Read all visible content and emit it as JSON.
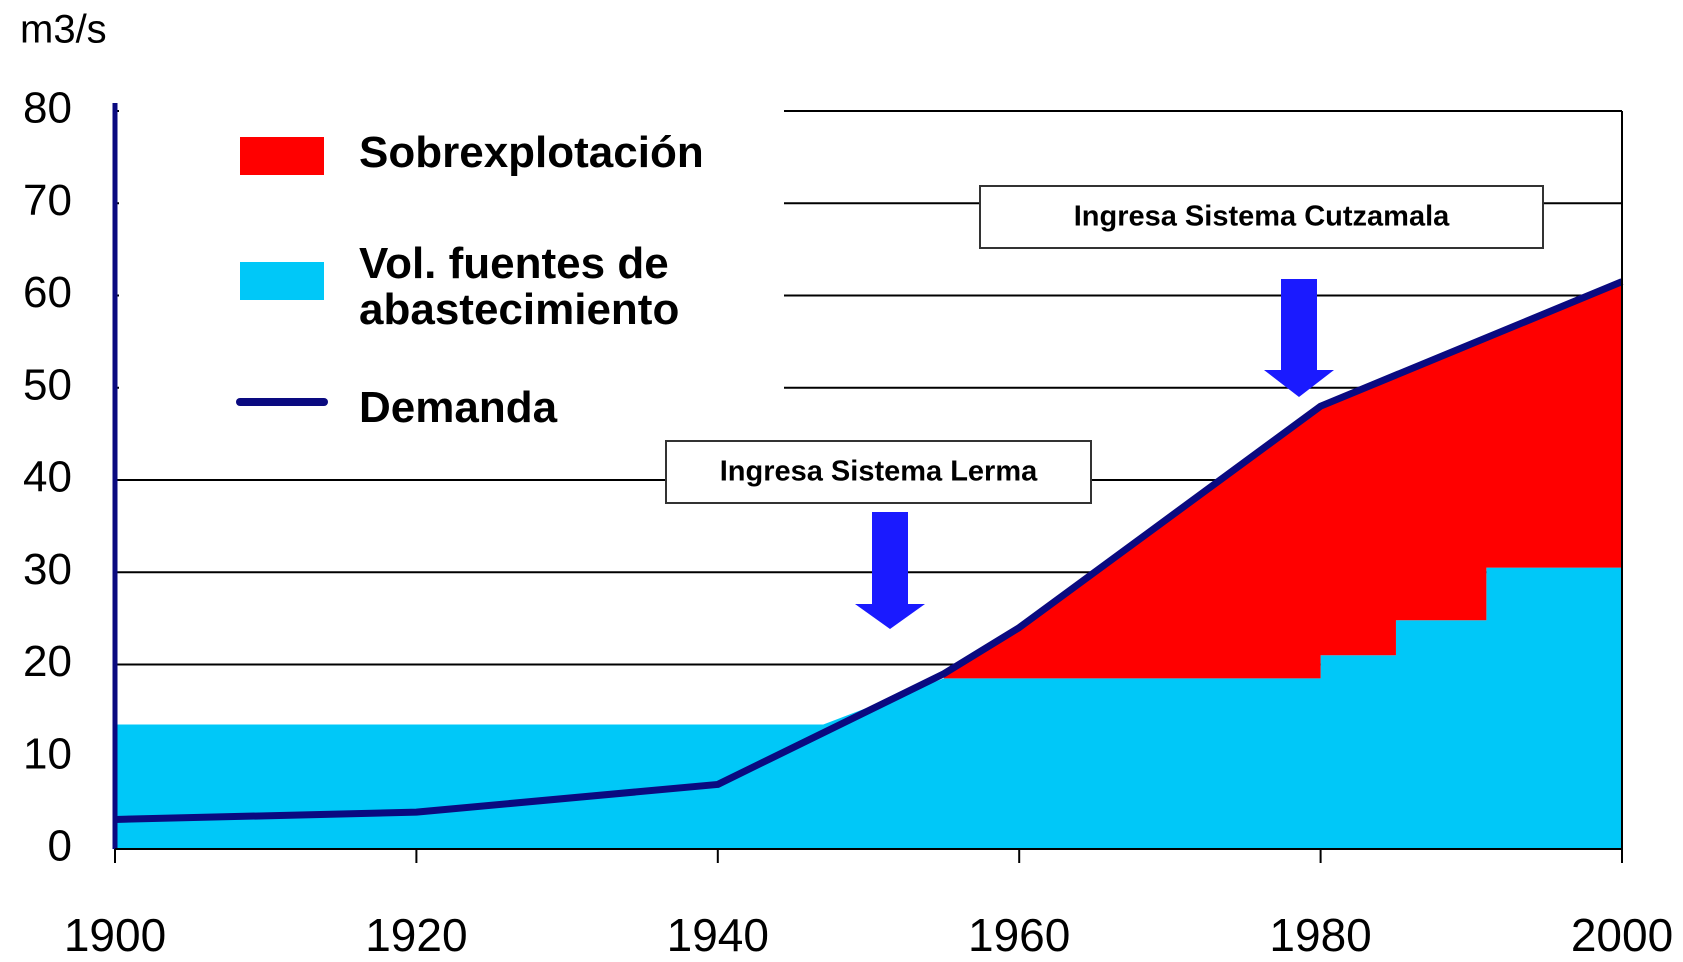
{
  "chart_data": {
    "type": "area",
    "y_label": "m3/s",
    "xlim": [
      1900,
      2000
    ],
    "xticks": [
      1900,
      1920,
      1940,
      1960,
      1980,
      2000
    ],
    "ylim": [
      0,
      80
    ],
    "yticks": [
      0,
      10,
      20,
      30,
      40,
      50,
      60,
      70,
      80
    ],
    "grid": true,
    "legend": "upper left",
    "series": [
      {
        "name": "Sobrexplotación",
        "color": "#ff0000",
        "type": "between"
      },
      {
        "name": "Vol. fuentes de abastecimiento",
        "color": "#00c8f8",
        "type": "area",
        "x": [
          1900,
          1947,
          1955,
          1980,
          1980,
          1985,
          1985,
          1991,
          1991,
          2000
        ],
        "values": [
          13.5,
          13.5,
          18.5,
          18.5,
          21,
          21,
          24.8,
          24.8,
          30.5,
          30.5
        ]
      },
      {
        "name": "Demanda",
        "color": "#0a0a80",
        "type": "line",
        "x": [
          1900,
          1920,
          1940,
          1955,
          1960,
          1980,
          2000
        ],
        "values": [
          3.2,
          4,
          7,
          19,
          24,
          48,
          61.5
        ]
      }
    ],
    "annotations": [
      "Ingresa Sistema Lerma",
      "Ingresa Sistema Cutzamala"
    ]
  }
}
